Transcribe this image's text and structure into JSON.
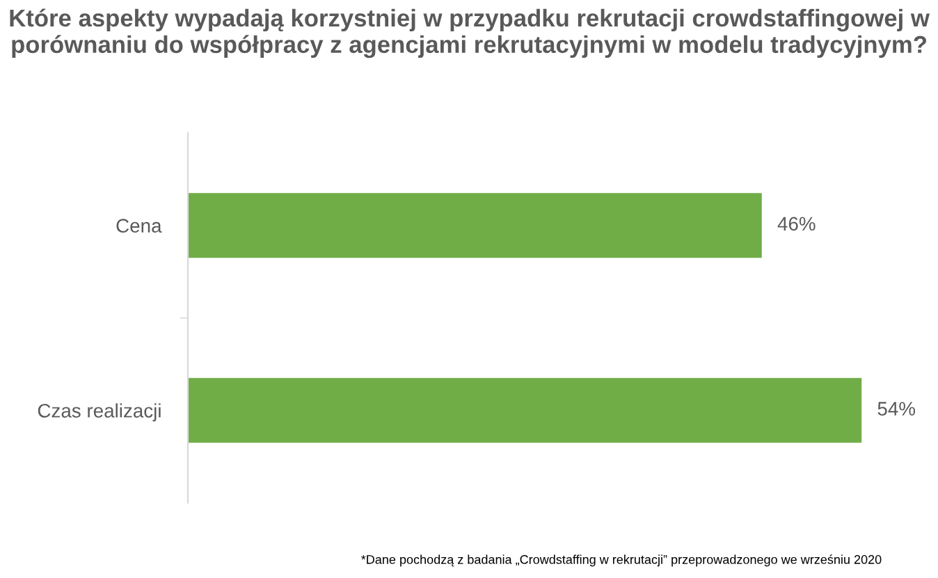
{
  "chart_data": {
    "type": "bar",
    "orientation": "horizontal",
    "title": "Które aspekty wypadają korzystniej w przypadku rekrutacji crowdstaffingowej w porównaniu do współpracy z agencjami rekrutacyjnymi w modelu tradycyjnym?",
    "categories": [
      "Cena",
      "Czas realizacji"
    ],
    "values": [
      46,
      54
    ],
    "color": "#70ad47",
    "value_labels": [
      "46%",
      "54%"
    ],
    "tick_labels": "y",
    "grid": false,
    "legend": false,
    "annotations": [
      "*Dane pochodzą z badania „Crowdstaffing w rekrutacji” przeprowadzonego we wrześniu 2020"
    ]
  }
}
